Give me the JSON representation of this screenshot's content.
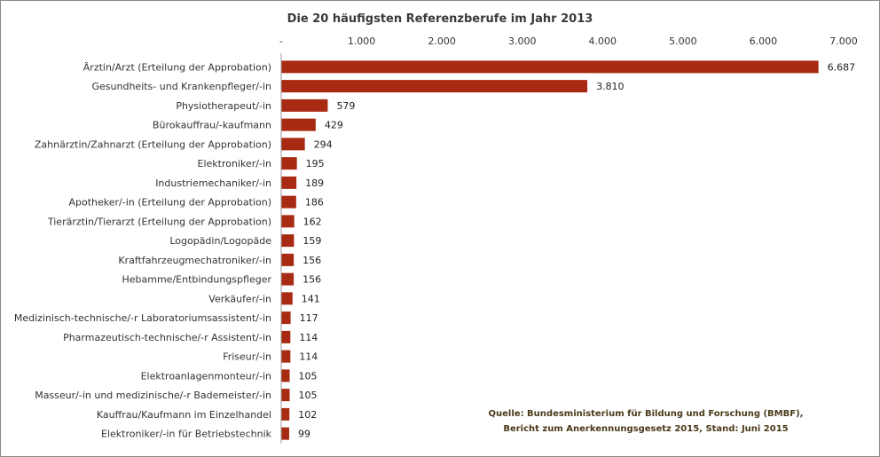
{
  "chart_data": {
    "type": "bar",
    "orientation": "horizontal",
    "title": "Die 20 häufigsten Referenzberufe im Jahr 2013",
    "xlim": [
      0,
      7000
    ],
    "x_ticks": [
      0,
      1000,
      2000,
      3000,
      4000,
      5000,
      6000,
      7000
    ],
    "x_tick_labels": [
      "-",
      "1.000",
      "2.000",
      "3.000",
      "4.000",
      "5.000",
      "6.000",
      "7.000"
    ],
    "bar_color": "#a82a12",
    "categories": [
      "Ärztin/Arzt (Erteilung der Approbation)",
      "Gesundheits- und Krankenpfleger/-in",
      "Physiotherapeut/-in",
      "Bürokauffrau/-kaufmann",
      "Zahnärztin/Zahnarzt (Erteilung der Approbation)",
      "Elektroniker/-in",
      "Industriemechaniker/-in",
      "Apotheker/-in (Erteilung der Approbation)",
      "Tierärztin/Tierarzt (Erteilung der Approbation)",
      "Logopädin/Logopäde",
      "Kraftfahrzeugmechatroniker/-in",
      "Hebamme/Entbindungspfleger",
      "Verkäufer/-in",
      "Medizinisch-technische/-r Laboratoriumsassistent/-in",
      "Pharmazeutisch-technische/-r Assistent/-in",
      "Friseur/-in",
      "Elektroanlagenmonteur/-in",
      "Masseur/-in und medizinische/-r Bademeister/-in",
      "Kauffrau/Kaufmann im Einzelhandel",
      "Elektroniker/-in für Betriebstechnik"
    ],
    "values": [
      6687,
      3810,
      579,
      429,
      294,
      195,
      189,
      186,
      162,
      159,
      156,
      156,
      141,
      117,
      114,
      114,
      105,
      105,
      102,
      99
    ],
    "value_labels": [
      "6.687",
      "3.810",
      "579",
      "429",
      "294",
      "195",
      "189",
      "186",
      "162",
      "159",
      "156",
      "156",
      "141",
      "117",
      "114",
      "114",
      "105",
      "105",
      "102",
      "99"
    ],
    "source_lines": [
      "Quelle: Bundesministerium  für Bildung und Forschung (BMBF),",
      "Bericht zum Anerkennungsgesetz  2015, Stand: Juni 2015"
    ]
  }
}
